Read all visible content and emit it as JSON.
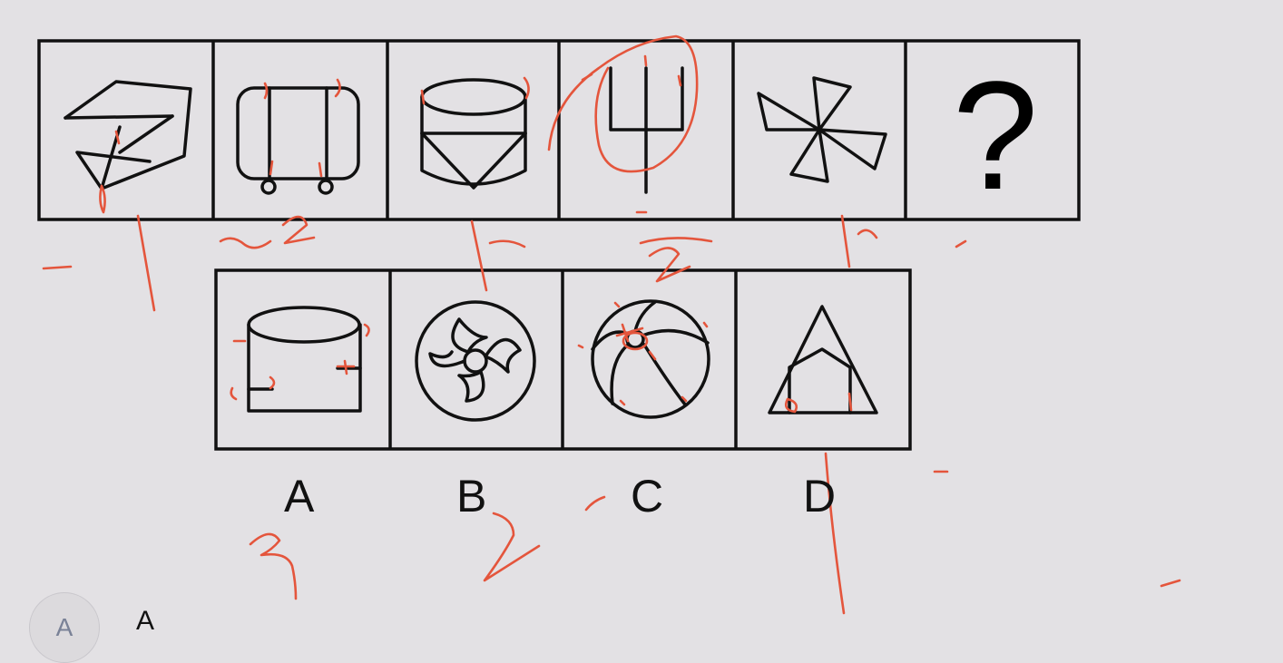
{
  "question_row": {
    "cells": [
      "figure-1",
      "figure-2",
      "figure-3",
      "figure-4",
      "figure-5",
      "unknown"
    ],
    "unknown_symbol": "?"
  },
  "options": {
    "labels": [
      "A",
      "B",
      "C",
      "D"
    ]
  },
  "handwritten_marks": {
    "numbers": [
      "2",
      "2",
      "3",
      "2"
    ]
  },
  "selection": {
    "option_circle_label": "A",
    "answer_text": "A"
  },
  "colors": {
    "background": "#e3e1e4",
    "ink_annotation": "#e4553c",
    "line": "#111111",
    "option_label": "#7a8297"
  }
}
